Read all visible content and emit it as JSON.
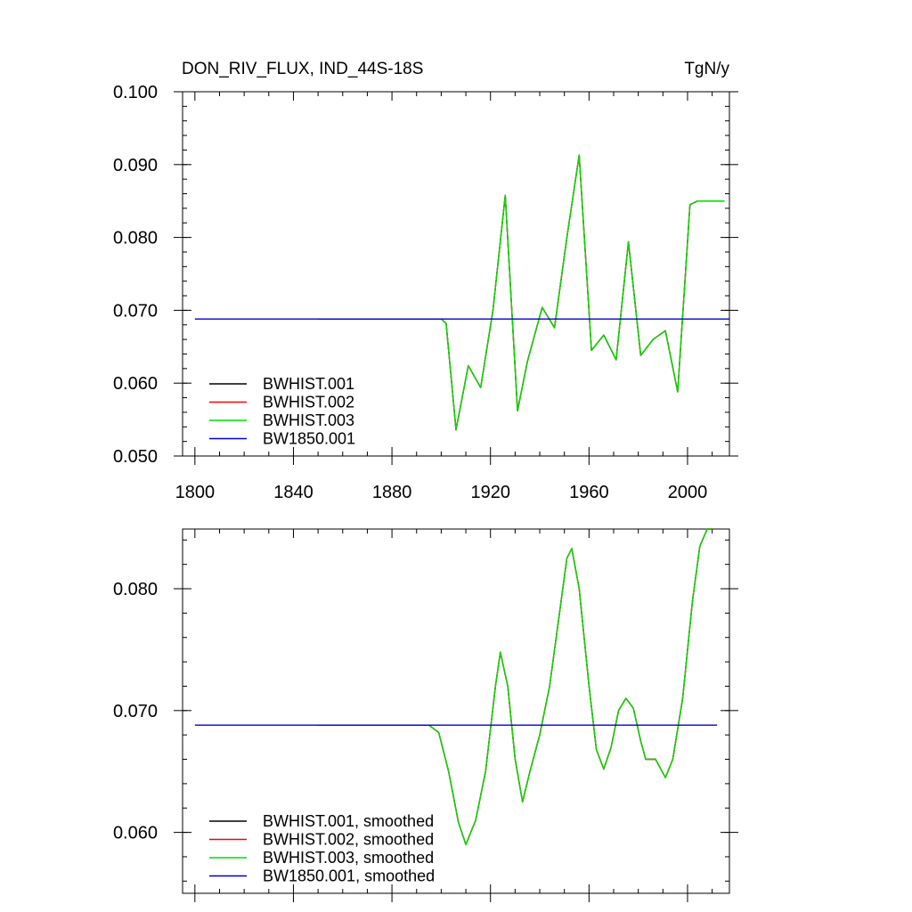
{
  "chart_data": [
    {
      "type": "line",
      "title": "DON_RIV_FLUX, IND_44S-18S",
      "units": "TgN/y",
      "xlim": [
        1795,
        2017
      ],
      "ylim": [
        0.05,
        0.1
      ],
      "x_ticks": [
        1800,
        1840,
        1880,
        1920,
        1960,
        2000
      ],
      "y_ticks": [
        "0.050",
        "0.060",
        "0.070",
        "0.080",
        "0.090",
        "0.100"
      ],
      "legend": {
        "placement": "bottom-left"
      },
      "series": [
        {
          "name": "BWHIST.001",
          "color": "#000000",
          "points": [
            [
              1850,
              0.0688
            ],
            [
              1900,
              0.0688
            ],
            [
              1902,
              0.0682
            ],
            [
              1906,
              0.0536
            ],
            [
              1911,
              0.0624
            ],
            [
              1916,
              0.0594
            ],
            [
              1921,
              0.07
            ],
            [
              1926,
              0.0858
            ],
            [
              1931,
              0.0562
            ],
            [
              1935,
              0.063
            ],
            [
              1941,
              0.0704
            ],
            [
              1946,
              0.0676
            ],
            [
              1951,
              0.08
            ],
            [
              1956,
              0.0913
            ],
            [
              1961,
              0.0645
            ],
            [
              1966,
              0.0666
            ],
            [
              1971,
              0.0632
            ],
            [
              1976,
              0.0794
            ],
            [
              1981,
              0.0638
            ],
            [
              1986,
              0.066
            ],
            [
              1991,
              0.0672
            ],
            [
              1996,
              0.0588
            ],
            [
              2001,
              0.0845
            ],
            [
              2004,
              0.085
            ],
            [
              2015,
              0.085
            ]
          ]
        },
        {
          "name": "BWHIST.002",
          "color": "#ff0000",
          "points": [
            [
              1850,
              0.0688
            ],
            [
              1900,
              0.0688
            ],
            [
              1902,
              0.0682
            ],
            [
              1906,
              0.0536
            ],
            [
              1911,
              0.0624
            ],
            [
              1916,
              0.0594
            ],
            [
              1921,
              0.07
            ],
            [
              1926,
              0.0858
            ],
            [
              1931,
              0.0562
            ],
            [
              1935,
              0.063
            ],
            [
              1941,
              0.0704
            ],
            [
              1946,
              0.0676
            ],
            [
              1951,
              0.08
            ],
            [
              1956,
              0.0913
            ],
            [
              1961,
              0.0645
            ],
            [
              1966,
              0.0666
            ],
            [
              1971,
              0.0632
            ],
            [
              1976,
              0.0794
            ],
            [
              1981,
              0.0638
            ],
            [
              1986,
              0.066
            ],
            [
              1991,
              0.0672
            ],
            [
              1996,
              0.0588
            ],
            [
              2001,
              0.0845
            ],
            [
              2004,
              0.085
            ],
            [
              2015,
              0.085
            ]
          ]
        },
        {
          "name": "BWHIST.003",
          "color": "#00dd00",
          "points": [
            [
              1850,
              0.0688
            ],
            [
              1900,
              0.0688
            ],
            [
              1902,
              0.0682
            ],
            [
              1906,
              0.0536
            ],
            [
              1911,
              0.0624
            ],
            [
              1916,
              0.0594
            ],
            [
              1921,
              0.07
            ],
            [
              1926,
              0.0858
            ],
            [
              1931,
              0.0562
            ],
            [
              1935,
              0.063
            ],
            [
              1941,
              0.0704
            ],
            [
              1946,
              0.0676
            ],
            [
              1951,
              0.08
            ],
            [
              1956,
              0.0913
            ],
            [
              1961,
              0.0645
            ],
            [
              1966,
              0.0666
            ],
            [
              1971,
              0.0632
            ],
            [
              1976,
              0.0794
            ],
            [
              1981,
              0.0638
            ],
            [
              1986,
              0.066
            ],
            [
              1991,
              0.0672
            ],
            [
              1996,
              0.0588
            ],
            [
              2001,
              0.0845
            ],
            [
              2004,
              0.085
            ],
            [
              2015,
              0.085
            ]
          ]
        },
        {
          "name": "BW1850.001",
          "color": "#0000cc",
          "points": [
            [
              1800,
              0.0688
            ],
            [
              2017,
              0.0688
            ]
          ]
        }
      ]
    },
    {
      "type": "line",
      "xlim": [
        1795,
        2017
      ],
      "ylim": [
        0.055,
        0.0849
      ],
      "x_ticks": [
        1800,
        1840,
        1880,
        1920,
        1960,
        2000
      ],
      "y_ticks": [
        "0.060",
        "0.070",
        "0.080"
      ],
      "legend": {
        "placement": "bottom-left"
      },
      "series": [
        {
          "name": "BWHIST.001, smoothed",
          "color": "#000000",
          "points": [
            [
              1850,
              0.0688
            ],
            [
              1895,
              0.0688
            ],
            [
              1899,
              0.0682
            ],
            [
              1903,
              0.065
            ],
            [
              1907,
              0.0608
            ],
            [
              1910,
              0.059
            ],
            [
              1914,
              0.061
            ],
            [
              1918,
              0.065
            ],
            [
              1922,
              0.072
            ],
            [
              1924,
              0.0748
            ],
            [
              1927,
              0.072
            ],
            [
              1930,
              0.066
            ],
            [
              1933,
              0.0625
            ],
            [
              1936,
              0.065
            ],
            [
              1940,
              0.068
            ],
            [
              1944,
              0.072
            ],
            [
              1948,
              0.078
            ],
            [
              1951,
              0.0825
            ],
            [
              1953,
              0.0833
            ],
            [
              1956,
              0.08
            ],
            [
              1960,
              0.072
            ],
            [
              1963,
              0.0668
            ],
            [
              1966,
              0.0652
            ],
            [
              1969,
              0.067
            ],
            [
              1972,
              0.07
            ],
            [
              1975,
              0.071
            ],
            [
              1978,
              0.0702
            ],
            [
              1981,
              0.0675
            ],
            [
              1983,
              0.066
            ],
            [
              1987,
              0.066
            ],
            [
              1991,
              0.0645
            ],
            [
              1994,
              0.066
            ],
            [
              1998,
              0.071
            ],
            [
              2002,
              0.079
            ],
            [
              2005,
              0.0835
            ],
            [
              2008,
              0.0849
            ],
            [
              2010,
              0.0849
            ]
          ]
        },
        {
          "name": "BWHIST.002, smoothed",
          "color": "#ff0000",
          "points": [
            [
              1850,
              0.0688
            ],
            [
              1895,
              0.0688
            ],
            [
              1899,
              0.0682
            ],
            [
              1903,
              0.065
            ],
            [
              1907,
              0.0608
            ],
            [
              1910,
              0.059
            ],
            [
              1914,
              0.061
            ],
            [
              1918,
              0.065
            ],
            [
              1922,
              0.072
            ],
            [
              1924,
              0.0748
            ],
            [
              1927,
              0.072
            ],
            [
              1930,
              0.066
            ],
            [
              1933,
              0.0625
            ],
            [
              1936,
              0.065
            ],
            [
              1940,
              0.068
            ],
            [
              1944,
              0.072
            ],
            [
              1948,
              0.078
            ],
            [
              1951,
              0.0825
            ],
            [
              1953,
              0.0833
            ],
            [
              1956,
              0.08
            ],
            [
              1960,
              0.072
            ],
            [
              1963,
              0.0668
            ],
            [
              1966,
              0.0652
            ],
            [
              1969,
              0.067
            ],
            [
              1972,
              0.07
            ],
            [
              1975,
              0.071
            ],
            [
              1978,
              0.0702
            ],
            [
              1981,
              0.0675
            ],
            [
              1983,
              0.066
            ],
            [
              1987,
              0.066
            ],
            [
              1991,
              0.0645
            ],
            [
              1994,
              0.066
            ],
            [
              1998,
              0.071
            ],
            [
              2002,
              0.079
            ],
            [
              2005,
              0.0835
            ],
            [
              2008,
              0.0849
            ],
            [
              2010,
              0.0849
            ]
          ]
        },
        {
          "name": "BWHIST.003, smoothed",
          "color": "#00dd00",
          "points": [
            [
              1850,
              0.0688
            ],
            [
              1895,
              0.0688
            ],
            [
              1899,
              0.0682
            ],
            [
              1903,
              0.065
            ],
            [
              1907,
              0.0608
            ],
            [
              1910,
              0.059
            ],
            [
              1914,
              0.061
            ],
            [
              1918,
              0.065
            ],
            [
              1922,
              0.072
            ],
            [
              1924,
              0.0748
            ],
            [
              1927,
              0.072
            ],
            [
              1930,
              0.066
            ],
            [
              1933,
              0.0625
            ],
            [
              1936,
              0.065
            ],
            [
              1940,
              0.068
            ],
            [
              1944,
              0.072
            ],
            [
              1948,
              0.078
            ],
            [
              1951,
              0.0825
            ],
            [
              1953,
              0.0833
            ],
            [
              1956,
              0.08
            ],
            [
              1960,
              0.072
            ],
            [
              1963,
              0.0668
            ],
            [
              1966,
              0.0652
            ],
            [
              1969,
              0.067
            ],
            [
              1972,
              0.07
            ],
            [
              1975,
              0.071
            ],
            [
              1978,
              0.0702
            ],
            [
              1981,
              0.0675
            ],
            [
              1983,
              0.066
            ],
            [
              1987,
              0.066
            ],
            [
              1991,
              0.0645
            ],
            [
              1994,
              0.066
            ],
            [
              1998,
              0.071
            ],
            [
              2002,
              0.079
            ],
            [
              2005,
              0.0835
            ],
            [
              2008,
              0.0849
            ],
            [
              2010,
              0.0849
            ]
          ]
        },
        {
          "name": "BW1850.001, smoothed",
          "color": "#0000cc",
          "points": [
            [
              1800,
              0.0688
            ],
            [
              2012,
              0.0688
            ]
          ]
        }
      ]
    }
  ]
}
